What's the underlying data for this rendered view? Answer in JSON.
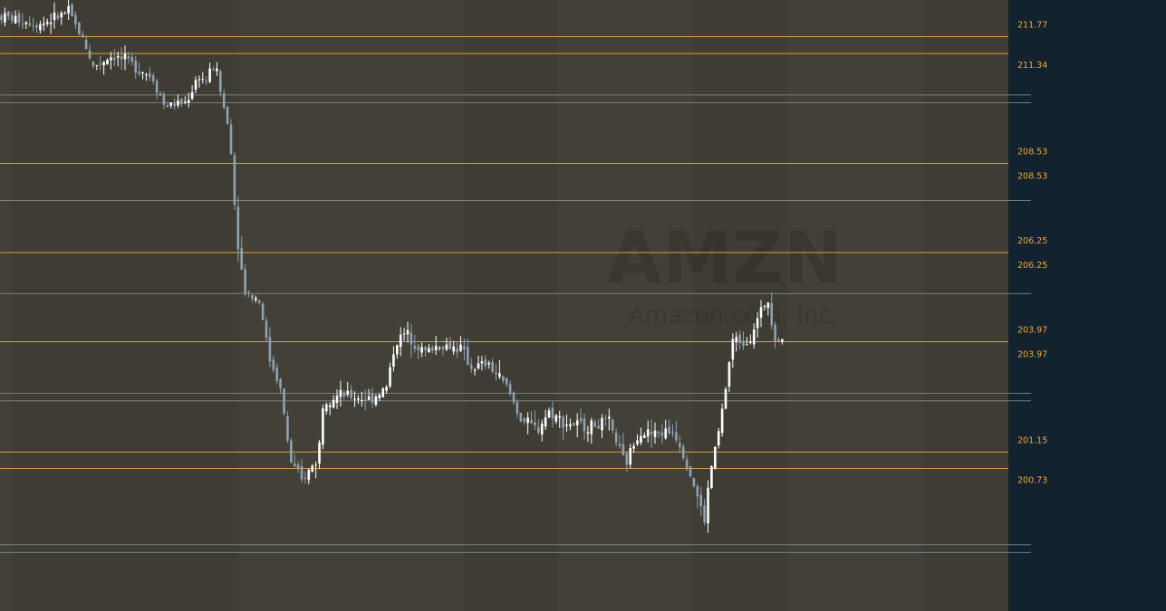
{
  "watermark": {
    "ticker": "AMZN",
    "company": "Amazon.com, Inc."
  },
  "colors": {
    "background": "#13222f",
    "session_light": "#243443",
    "zone_tan": "#4a4434",
    "level_orange": "#e8a53a",
    "level_gray": "#8c96a0",
    "candle_up": "#ffffff",
    "candle_down": "#8ea2b2",
    "label_orange": "#f0a830"
  },
  "chart_data": {
    "type": "candlestick",
    "symbol": "AMZN",
    "ylim": [
      198.2,
      212.5
    ],
    "price_labels": [
      "211.77",
      "211.34",
      "208.53",
      "208.53",
      "206.25",
      "206.25",
      "203.97",
      "203.97",
      "201.15",
      "200.73"
    ],
    "levels": [
      {
        "price": 211.77,
        "kind": "orange",
        "labeled": true
      },
      {
        "price": 211.34,
        "kind": "orange",
        "labeled": true
      },
      {
        "price": 210.28,
        "kind": "gray",
        "labeled": false
      },
      {
        "price": 210.08,
        "kind": "gray",
        "labeled": false
      },
      {
        "price": 208.53,
        "kind": "orange",
        "labeled": true
      },
      {
        "price": 207.58,
        "kind": "gray",
        "labeled": false
      },
      {
        "price": 206.25,
        "kind": "orange",
        "labeled": true
      },
      {
        "price": 205.2,
        "kind": "gray",
        "labeled": false
      },
      {
        "price": 203.97,
        "kind": "orange",
        "labeled": true
      },
      {
        "price": 202.65,
        "kind": "gray",
        "labeled": false
      },
      {
        "price": 202.46,
        "kind": "gray",
        "labeled": false
      },
      {
        "price": 201.15,
        "kind": "orange",
        "labeled": true
      },
      {
        "price": 200.73,
        "kind": "orange",
        "labeled": true
      },
      {
        "price": 198.78,
        "kind": "gray",
        "labeled": false
      },
      {
        "price": 198.58,
        "kind": "gray",
        "labeled": false
      }
    ],
    "zones": [
      {
        "from": 211.77,
        "to": 200.73,
        "kind": "tan"
      }
    ],
    "sessions": [
      {
        "from": 0,
        "to": 0.08,
        "shade": "light"
      },
      {
        "from": 0.08,
        "to": 1.74,
        "shade": "dark"
      },
      {
        "from": 1.74,
        "to": 3.39,
        "shade": "light"
      },
      {
        "from": 3.39,
        "to": 4.07,
        "shade": "dark"
      },
      {
        "from": 4.07,
        "to": 5.06,
        "shade": "light"
      },
      {
        "from": 5.06,
        "to": 5.74,
        "shade": "dark"
      },
      {
        "from": 5.74,
        "to": 6.73,
        "shade": "light"
      },
      {
        "from": 6.73,
        "to": 7.39,
        "shade": "dark"
      }
    ],
    "close_path": [
      [
        0.0,
        212.3
      ],
      [
        0.3,
        212.1
      ],
      [
        0.5,
        212.4
      ],
      [
        0.62,
        211.6
      ],
      [
        0.68,
        211.0
      ],
      [
        0.82,
        211.3
      ],
      [
        1.0,
        211.0
      ],
      [
        1.12,
        210.7
      ],
      [
        1.2,
        210.0
      ],
      [
        1.36,
        210.1
      ],
      [
        1.45,
        210.8
      ],
      [
        1.5,
        210.6
      ],
      [
        1.57,
        211.1
      ],
      [
        1.6,
        210.5
      ],
      [
        1.68,
        209.2
      ],
      [
        1.72,
        207.0
      ],
      [
        1.78,
        205.3
      ],
      [
        1.9,
        205.0
      ],
      [
        1.96,
        203.6
      ],
      [
        2.04,
        202.9
      ],
      [
        2.12,
        200.9
      ],
      [
        2.2,
        200.4
      ],
      [
        2.32,
        201.0
      ],
      [
        2.36,
        202.5
      ],
      [
        2.5,
        202.6
      ],
      [
        2.7,
        202.5
      ],
      [
        2.82,
        202.8
      ],
      [
        2.88,
        203.9
      ],
      [
        2.96,
        204.2
      ],
      [
        3.1,
        203.7
      ],
      [
        3.2,
        203.9
      ],
      [
        3.36,
        203.8
      ],
      [
        3.44,
        203.3
      ],
      [
        3.56,
        203.4
      ],
      [
        3.7,
        202.8
      ],
      [
        3.8,
        202.0
      ],
      [
        3.92,
        201.7
      ],
      [
        4.0,
        202.2
      ],
      [
        4.12,
        201.9
      ],
      [
        4.28,
        201.8
      ],
      [
        4.44,
        201.9
      ],
      [
        4.5,
        201.4
      ],
      [
        4.56,
        200.8
      ],
      [
        4.66,
        201.7
      ],
      [
        4.76,
        201.6
      ],
      [
        4.92,
        201.7
      ],
      [
        5.0,
        201.0
      ],
      [
        5.08,
        200.1
      ],
      [
        5.14,
        199.4
      ],
      [
        5.18,
        200.6
      ],
      [
        5.24,
        201.6
      ],
      [
        5.3,
        202.9
      ],
      [
        5.34,
        204.0
      ],
      [
        5.46,
        204.0
      ],
      [
        5.56,
        204.8
      ],
      [
        5.6,
        205.1
      ],
      [
        5.66,
        204.0
      ],
      [
        5.72,
        204.1
      ]
    ]
  }
}
